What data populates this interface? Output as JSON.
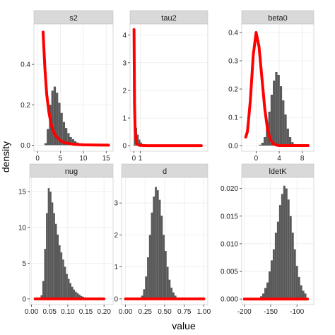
{
  "chart_data": {
    "type": "facet_histogram_density",
    "xlabel": "value",
    "ylabel": "density",
    "colors": {
      "histogram": "#595959",
      "prior_line": "#ff0000",
      "strip_bg": "#d9d9d9",
      "panel_bg": "#ffffff",
      "grid": "#ebebeb"
    },
    "panels": [
      {
        "name": "s2",
        "xlim": [
          -0.8,
          16.5
        ],
        "ylim": [
          -0.03,
          0.6
        ],
        "xticks": [
          0,
          5,
          10,
          15
        ],
        "xtick_labels": [
          "0",
          "5",
          "10",
          "15"
        ],
        "yticks": [
          0,
          0.2,
          0.4
        ],
        "ytick_labels": [
          "0.0",
          "0.2",
          "0.4"
        ],
        "hist": {
          "start": 1.5,
          "width": 0.5,
          "heights": [
            0.01,
            0.08,
            0.2,
            0.27,
            0.29,
            0.26,
            0.21,
            0.16,
            0.115,
            0.085,
            0.06,
            0.04,
            0.03,
            0.02,
            0.013,
            0.008,
            0.005,
            0.003
          ]
        },
        "prior": {
          "x": [
            1.2,
            1.6,
            2.0,
            2.5,
            3.0,
            3.5,
            4.0,
            5.0,
            6.0,
            8.0,
            10.0,
            12.0,
            15.5
          ],
          "y": [
            0.56,
            0.38,
            0.25,
            0.16,
            0.1,
            0.065,
            0.045,
            0.022,
            0.012,
            0.004,
            0.002,
            0.001,
            0.0
          ]
        }
      },
      {
        "name": "tau2",
        "xlim": [
          -0.6,
          11.5
        ],
        "ylim": [
          -0.2,
          4.4
        ],
        "xticks": [
          0,
          1
        ],
        "xtick_labels": [
          "0",
          "1"
        ],
        "yticks": [
          0,
          1,
          2,
          3,
          4
        ],
        "ytick_labels": [
          "0",
          "1",
          "2",
          "3",
          "4"
        ],
        "hist": {
          "start": 0.0,
          "width": 0.25,
          "heights": [
            0.45,
            0.65,
            0.4,
            0.22,
            0.12,
            0.06,
            0.03,
            0.015
          ]
        },
        "prior": {
          "x": [
            0.02,
            0.1,
            0.2,
            0.35,
            0.5,
            0.8,
            1.0,
            2.0,
            4.0,
            6.0,
            10.5
          ],
          "y": [
            4.2,
            1.5,
            0.5,
            0.15,
            0.06,
            0.02,
            0.01,
            0.0,
            0.0,
            0.0,
            0.0
          ]
        }
      },
      {
        "name": "beta0",
        "xlim": [
          -2.5,
          10.0
        ],
        "ylim": [
          -0.02,
          0.43
        ],
        "xticks": [
          0,
          4,
          8
        ],
        "xtick_labels": [
          "0",
          "4",
          "8"
        ],
        "yticks": [
          0,
          0.1,
          0.2,
          0.3,
          0.4
        ],
        "ytick_labels": [
          "0.0",
          "0.1",
          "0.2",
          "0.3",
          "0.4"
        ],
        "hist": {
          "start": 0.5,
          "width": 0.4,
          "heights": [
            0.003,
            0.01,
            0.03,
            0.07,
            0.12,
            0.18,
            0.23,
            0.26,
            0.25,
            0.21,
            0.16,
            0.11,
            0.06,
            0.03,
            0.012,
            0.005
          ]
        },
        "prior": {
          "x": [
            -1.8,
            -1.5,
            -1.0,
            -0.5,
            0.0,
            0.5,
            1.0,
            1.5,
            2.0,
            2.5,
            3.0,
            3.5,
            4.0,
            5.0,
            6.0,
            8.0,
            9.0
          ],
          "y": [
            0.03,
            0.05,
            0.16,
            0.32,
            0.4,
            0.35,
            0.24,
            0.13,
            0.055,
            0.02,
            0.006,
            0.002,
            0.0,
            0.0,
            0.0,
            0.0,
            0.0
          ]
        }
      },
      {
        "name": "nug",
        "xlim": [
          -0.005,
          0.225
        ],
        "ylim": [
          -0.8,
          17.0
        ],
        "xticks": [
          0.0,
          0.05,
          0.1,
          0.15,
          0.2
        ],
        "xtick_labels": [
          "0.00",
          "0.05",
          "0.10",
          "0.15",
          "0.20"
        ],
        "yticks": [
          0,
          5,
          10,
          15
        ],
        "ytick_labels": [
          "0",
          "5",
          "10",
          "15"
        ],
        "hist": {
          "start": 0.025,
          "width": 0.005,
          "heights": [
            0.5,
            2.5,
            7.0,
            12.0,
            15.5,
            15.0,
            13.5,
            12.0,
            10.5,
            9.0,
            7.5,
            6.5,
            5.5,
            4.5,
            3.5,
            2.8,
            2.2,
            1.7,
            1.3,
            1.0,
            0.8,
            0.6,
            0.4,
            0.3,
            0.2,
            0.1
          ]
        },
        "prior": {
          "x": [
            0.01,
            0.05,
            0.1,
            0.15,
            0.2
          ],
          "y": [
            0,
            0,
            0,
            0,
            0
          ]
        }
      },
      {
        "name": "d",
        "xlim": [
          -0.05,
          1.05
        ],
        "ylim": [
          -0.18,
          3.8
        ],
        "xticks": [
          0.0,
          0.25,
          0.5,
          0.75,
          1.0
        ],
        "xtick_labels": [
          "0.00",
          "0.25",
          "0.50",
          "0.75",
          "1.00"
        ],
        "yticks": [
          0,
          1,
          2,
          3
        ],
        "ytick_labels": [
          "0",
          "1",
          "2",
          "3"
        ],
        "hist": {
          "start": 0.2,
          "width": 0.025,
          "heights": [
            0.1,
            0.3,
            0.7,
            1.3,
            2.0,
            2.7,
            3.2,
            3.5,
            3.4,
            3.1,
            2.6,
            2.0,
            1.5,
            1.0,
            0.6,
            0.35,
            0.2,
            0.1
          ]
        },
        "prior": {
          "x": [
            0.0,
            0.25,
            0.5,
            0.75,
            1.0
          ],
          "y": [
            0,
            0,
            0,
            0,
            0
          ]
        }
      },
      {
        "name": "ldetK",
        "xlim": [
          -205,
          -68
        ],
        "ylim": [
          -0.001,
          0.022
        ],
        "xticks": [
          -200,
          -150,
          -100
        ],
        "xtick_labels": [
          "-200",
          "-150",
          "-100"
        ],
        "yticks": [
          0,
          0.005,
          0.01,
          0.015,
          0.02
        ],
        "ytick_labels": [
          "0.000",
          "0.005",
          "0.010",
          "0.015",
          "0.020"
        ],
        "hist": {
          "start": -170,
          "width": 4,
          "heights": [
            0.0005,
            0.001,
            0.002,
            0.003,
            0.005,
            0.007,
            0.009,
            0.012,
            0.014,
            0.017,
            0.019,
            0.0205,
            0.02,
            0.018,
            0.015,
            0.012,
            0.009,
            0.006,
            0.004,
            0.0025,
            0.0015,
            0.001
          ]
        },
        "prior": {
          "x": [
            -200,
            -170,
            -140,
            -110,
            -80
          ],
          "y": [
            0,
            0,
            0,
            0,
            0
          ]
        }
      }
    ]
  }
}
